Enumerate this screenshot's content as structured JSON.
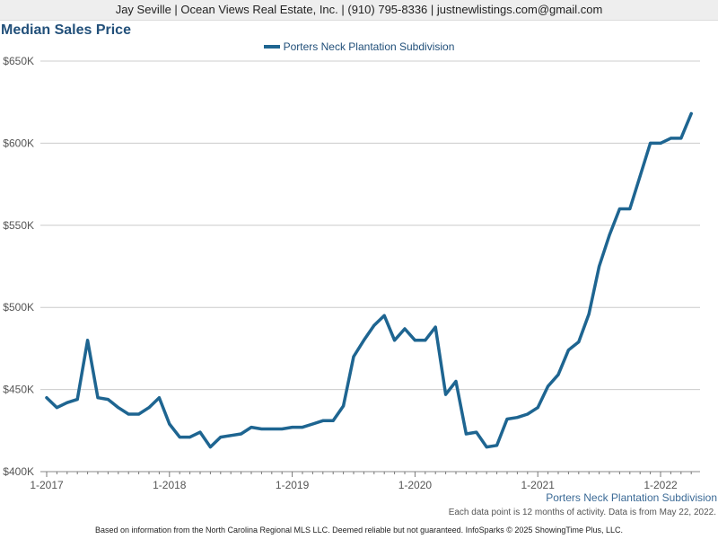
{
  "header": {
    "text": "Jay Seville | Ocean Views Real Estate, Inc. | (910) 795-8336 | justnewlistings.com@gmail.com"
  },
  "footer": {
    "note": "Each data point is 12 months of activity. Data is from May 22, 2022.",
    "disclaimer": "Based on information from the North Carolina Regional MLS LLC. Deemed reliable but not guaranteed. InfoSparks © 2025 ShowingTime Plus, LLC."
  },
  "colors": {
    "series": "#1e6591",
    "title": "#22507a",
    "grid": "#cccccc"
  },
  "chart_data": {
    "type": "line",
    "title": "Median Sales Price",
    "series_caption": "Porters Neck Plantation Subdivision",
    "legend_position": "top-center",
    "grid": true,
    "ylim": [
      400000,
      650000
    ],
    "yticks": [
      400000,
      450000,
      500000,
      550000,
      600000,
      650000
    ],
    "ytick_labels": [
      "$400K",
      "$450K",
      "$500K",
      "$550K",
      "$600K",
      "$650K"
    ],
    "xtick_labels": [
      "1-2017",
      "1-2018",
      "1-2019",
      "1-2020",
      "1-2021",
      "1-2022"
    ],
    "x": [
      "1-2017",
      "2-2017",
      "3-2017",
      "4-2017",
      "5-2017",
      "6-2017",
      "7-2017",
      "8-2017",
      "9-2017",
      "10-2017",
      "11-2017",
      "12-2017",
      "1-2018",
      "2-2018",
      "3-2018",
      "4-2018",
      "5-2018",
      "6-2018",
      "7-2018",
      "8-2018",
      "9-2018",
      "10-2018",
      "11-2018",
      "12-2018",
      "1-2019",
      "2-2019",
      "3-2019",
      "4-2019",
      "5-2019",
      "6-2019",
      "7-2019",
      "8-2019",
      "9-2019",
      "10-2019",
      "11-2019",
      "12-2019",
      "1-2020",
      "2-2020",
      "3-2020",
      "4-2020",
      "5-2020",
      "6-2020",
      "7-2020",
      "8-2020",
      "9-2020",
      "10-2020",
      "11-2020",
      "12-2020",
      "1-2021",
      "2-2021",
      "3-2021",
      "4-2021",
      "5-2021",
      "6-2021",
      "7-2021",
      "8-2021",
      "9-2021",
      "10-2021",
      "11-2021",
      "12-2021",
      "1-2022",
      "2-2022",
      "3-2022",
      "4-2022"
    ],
    "series": [
      {
        "name": "Porters Neck Plantation Subdivision",
        "values": [
          445000,
          439000,
          442000,
          444000,
          480000,
          445000,
          444000,
          439000,
          435000,
          435000,
          439000,
          445000,
          429000,
          421000,
          421000,
          424000,
          415000,
          421000,
          422000,
          423000,
          427000,
          426000,
          426000,
          426000,
          427000,
          427000,
          429000,
          431000,
          431000,
          440000,
          470000,
          480000,
          489000,
          495000,
          480000,
          487000,
          480000,
          480000,
          488000,
          447000,
          455000,
          423000,
          424000,
          415000,
          416000,
          432000,
          433000,
          435000,
          439000,
          452000,
          459000,
          474000,
          479000,
          496000,
          525000,
          544000,
          560000,
          560000,
          580000,
          600000,
          600000,
          603000,
          603000,
          618000
        ]
      }
    ]
  }
}
